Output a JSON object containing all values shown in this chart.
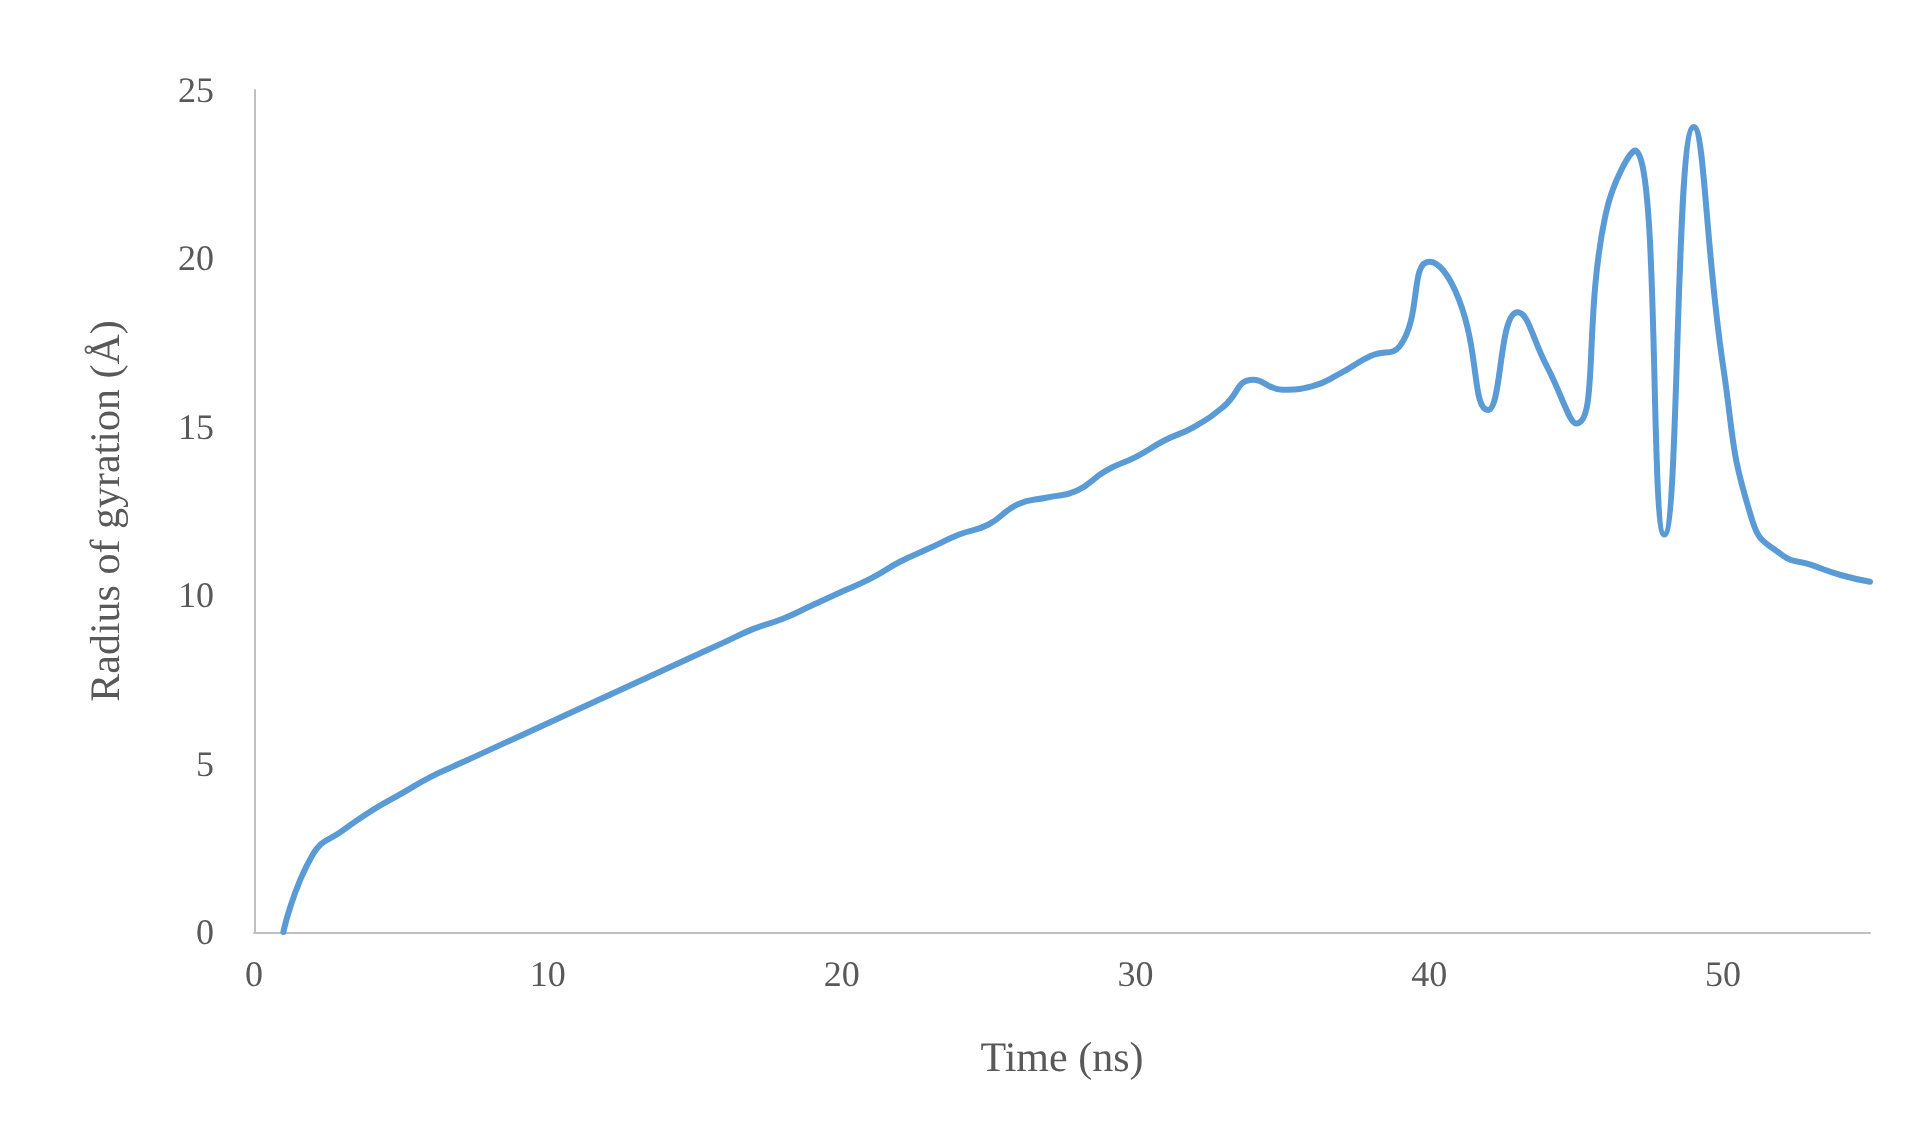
{
  "chart_data": {
    "type": "line",
    "xlabel": "Time (ns)",
    "ylabel": "Radius of gyration (Å)",
    "x": [
      1,
      2,
      3,
      4,
      5,
      6,
      7,
      8,
      9,
      10,
      11,
      12,
      13,
      14,
      15,
      16,
      17,
      18,
      19,
      20,
      21,
      22,
      23,
      24,
      25,
      26,
      27,
      28,
      29,
      30,
      31,
      32,
      33,
      34,
      35,
      36,
      37,
      38,
      39,
      40,
      41,
      42,
      43,
      44,
      45,
      46,
      47,
      48,
      49,
      50,
      51,
      52,
      53,
      54,
      55
    ],
    "series": [
      {
        "color": "#5b9bd5",
        "values": [
          0,
          2.3,
          3.0,
          3.6,
          4.1,
          4.6,
          5.0,
          5.4,
          5.8,
          6.2,
          6.6,
          7.0,
          7.4,
          7.8,
          8.2,
          8.6,
          9.0,
          9.3,
          9.7,
          10.1,
          10.5,
          11.0,
          11.4,
          11.8,
          12.1,
          12.7,
          12.9,
          13.1,
          13.7,
          14.1,
          14.6,
          15.0,
          15.6,
          16.4,
          16.1,
          16.2,
          16.6,
          17.1,
          17.4,
          19.9,
          18.8,
          15.5,
          18.4,
          16.8,
          15.1,
          21.3,
          23.2,
          11.8,
          23.9,
          16.8,
          12.2,
          11.2,
          10.9,
          10.6,
          10.4
        ]
      }
    ],
    "xlim": [
      0,
      55
    ],
    "xticks": [
      0,
      10,
      20,
      30,
      40,
      50
    ],
    "ylim": [
      0,
      25
    ],
    "yticks": [
      0,
      5,
      10,
      15,
      20,
      25
    ],
    "grid": false,
    "marker": "none",
    "line_style": "solid"
  }
}
